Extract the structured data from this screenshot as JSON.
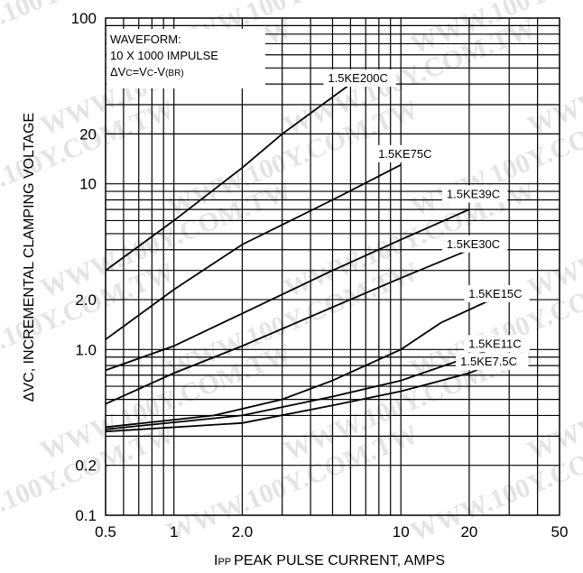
{
  "chart_data": {
    "type": "line",
    "xscale": "log",
    "yscale": "log",
    "xlim": [
      0.5,
      50
    ],
    "ylim": [
      0.1,
      100
    ],
    "xlabel_main": "PEAK PULSE CURRENT, AMPS",
    "xlabel_prefix": "I",
    "xlabel_sub": "PP",
    "ylabel": "ΔVC, INCREMENTAL CLAMPING VOLTAGE",
    "x_ticks": [
      {
        "value": 0.5,
        "label": "0.5"
      },
      {
        "value": 1,
        "label": "1"
      },
      {
        "value": 2,
        "label": "2.0"
      },
      {
        "value": 10,
        "label": "10"
      },
      {
        "value": 20,
        "label": "20"
      },
      {
        "value": 50,
        "label": "50"
      }
    ],
    "y_ticks": [
      {
        "value": 0.1,
        "label": "0.1"
      },
      {
        "value": 0.2,
        "label": "0.2"
      },
      {
        "value": 1,
        "label": "1.0"
      },
      {
        "value": 2,
        "label": "2.0"
      },
      {
        "value": 10,
        "label": "10"
      },
      {
        "value": 20,
        "label": "20"
      },
      {
        "value": 100,
        "label": "100"
      }
    ],
    "waveform_note": {
      "line1": "WAVEFORM:",
      "line2": "10 X 1000 IMPULSE",
      "line3_prefix": "ΔV",
      "line3_sub1": "C",
      "line3_mid": "=V",
      "line3_sub2": "C",
      "line3_mid2": "-V",
      "line3_sub3": "(BR)"
    },
    "grid": true,
    "series": [
      {
        "name": "1.5KE200C",
        "points": [
          [
            0.5,
            3.0
          ],
          [
            1,
            6.0
          ],
          [
            2,
            12.5
          ],
          [
            3,
            20.0
          ],
          [
            6,
            40.0
          ]
        ],
        "label_x": 6.0,
        "label_y": 40.0
      },
      {
        "name": "1.5KE75C",
        "points": [
          [
            0.5,
            1.15
          ],
          [
            1,
            2.3
          ],
          [
            2,
            4.3
          ],
          [
            5,
            8.0
          ],
          [
            10,
            13.0
          ]
        ],
        "label_x": 10.0,
        "label_y": 14.0
      },
      {
        "name": "1.5KE39C",
        "points": [
          [
            0.5,
            0.75
          ],
          [
            1,
            1.05
          ],
          [
            2,
            1.65
          ],
          [
            5,
            3.0
          ],
          [
            10,
            4.6
          ],
          [
            20,
            7.0
          ]
        ],
        "label_x": 20.0,
        "label_y": 8.0
      },
      {
        "name": "1.5KE30C",
        "points": [
          [
            0.5,
            0.47
          ],
          [
            1,
            0.72
          ],
          [
            2,
            1.05
          ],
          [
            5,
            1.8
          ],
          [
            10,
            2.7
          ],
          [
            20,
            4.0
          ]
        ],
        "label_x": 20.0,
        "label_y": 4.0
      },
      {
        "name": "1.5KE15C",
        "points": [
          [
            0.5,
            0.34
          ],
          [
            1.5,
            0.4
          ],
          [
            3,
            0.5
          ],
          [
            5,
            0.65
          ],
          [
            10,
            1.0
          ],
          [
            15,
            1.45
          ],
          [
            25,
            2.0
          ]
        ],
        "label_x": 25.0,
        "label_y": 2.0
      },
      {
        "name": "1.5KE11C",
        "points": [
          [
            0.5,
            0.33
          ],
          [
            2,
            0.4
          ],
          [
            5,
            0.52
          ],
          [
            10,
            0.65
          ],
          [
            20,
            0.9
          ],
          [
            25,
            1.0
          ]
        ],
        "label_x": 25.0,
        "label_y": 1.0
      },
      {
        "name": "1.5KE7.5C",
        "points": [
          [
            0.5,
            0.32
          ],
          [
            2,
            0.36
          ],
          [
            5,
            0.46
          ],
          [
            10,
            0.56
          ],
          [
            20,
            0.72
          ],
          [
            23,
            0.78
          ]
        ],
        "label_x": 23.0,
        "label_y": 0.78
      }
    ]
  },
  "watermark": {
    "text": "WWW.100Y.COM.TW"
  }
}
